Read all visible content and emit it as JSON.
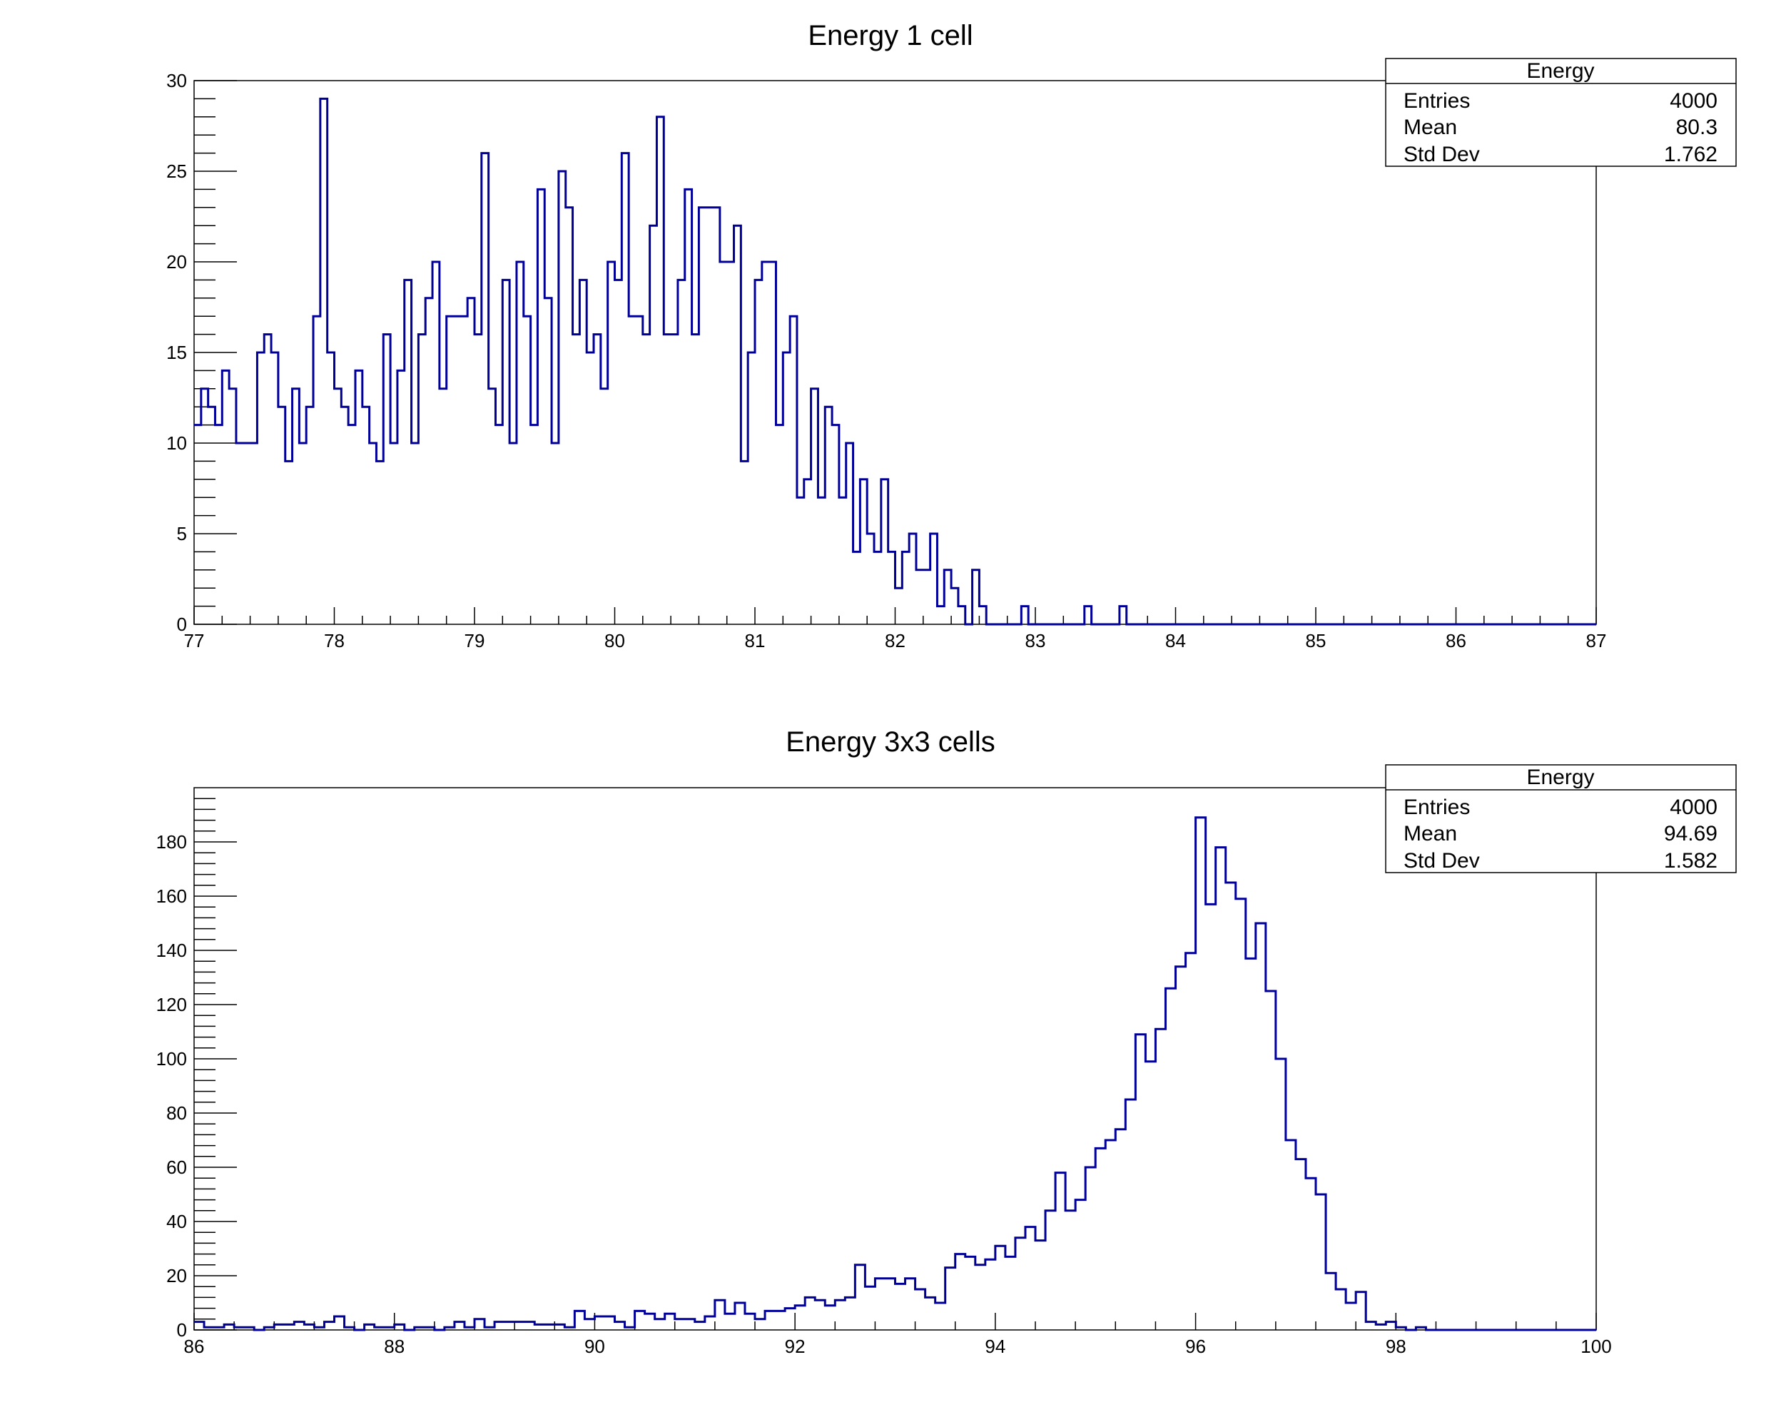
{
  "chart_data": [
    {
      "type": "histogram",
      "title": "Energy 1 cell",
      "xlabel": "",
      "ylabel": "",
      "xlim": [
        77,
        87
      ],
      "ylim": [
        0,
        30
      ],
      "x_ticks": [
        77,
        78,
        79,
        80,
        81,
        82,
        83,
        84,
        85,
        86,
        87
      ],
      "y_ticks": [
        0,
        5,
        10,
        15,
        20,
        25,
        30
      ],
      "bin_width": 0.05,
      "x_start": 77,
      "values": [
        11,
        13,
        12,
        11,
        14,
        13,
        10,
        10,
        10,
        15,
        16,
        15,
        12,
        9,
        13,
        10,
        12,
        17,
        29,
        15,
        13,
        12,
        11,
        14,
        12,
        10,
        9,
        16,
        10,
        14,
        19,
        10,
        16,
        18,
        20,
        13,
        17,
        17,
        17,
        18,
        16,
        26,
        13,
        11,
        19,
        10,
        20,
        17,
        11,
        24,
        18,
        10,
        25,
        23,
        16,
        19,
        15,
        16,
        13,
        20,
        19,
        26,
        17,
        17,
        16,
        22,
        28,
        16,
        16,
        19,
        24,
        16,
        23,
        23,
        23,
        20,
        20,
        22,
        9,
        15,
        19,
        20,
        20,
        11,
        15,
        17,
        7,
        8,
        13,
        7,
        12,
        11,
        7,
        10,
        4,
        8,
        5,
        4,
        8,
        4,
        2,
        4,
        5,
        3,
        3,
        5,
        1,
        3,
        2,
        1,
        0,
        3,
        1,
        0,
        0,
        0,
        0,
        0,
        1,
        0,
        0,
        0,
        0,
        0,
        0,
        0,
        0,
        1,
        0,
        0,
        0,
        0,
        1,
        0,
        0,
        0,
        0,
        0,
        0,
        0,
        0,
        0,
        0,
        0,
        0,
        0,
        0,
        0,
        0,
        0,
        0,
        0,
        0,
        0,
        0,
        0,
        0,
        0,
        0,
        0,
        0,
        0,
        0,
        0,
        0,
        0,
        0,
        0,
        0,
        0,
        0,
        0,
        0,
        0,
        0,
        0,
        0,
        0,
        0,
        0,
        0,
        0,
        0,
        0,
        0,
        0,
        0,
        0,
        0,
        0,
        0,
        0,
        0,
        0,
        0,
        0,
        0,
        0,
        0,
        0
      ],
      "stats": {
        "title": "Energy",
        "rows": [
          {
            "label": "Entries",
            "value": "4000"
          },
          {
            "label": "Mean",
            "value": "80.3"
          },
          {
            "label": "Std Dev",
            "value": "1.762"
          }
        ]
      },
      "color": "#000099",
      "grid": false
    },
    {
      "type": "histogram",
      "title": "Energy 3x3 cells",
      "xlabel": "",
      "ylabel": "",
      "xlim": [
        86,
        100
      ],
      "ylim": [
        0,
        200
      ],
      "x_ticks": [
        86,
        88,
        90,
        92,
        94,
        96,
        98,
        100
      ],
      "y_ticks": [
        0,
        20,
        40,
        60,
        80,
        100,
        120,
        140,
        160,
        180
      ],
      "bin_width": 0.1,
      "x_start": 86,
      "values": [
        3,
        1,
        1,
        2,
        1,
        1,
        0,
        1,
        2,
        2,
        3,
        2,
        1,
        3,
        5,
        1,
        0,
        2,
        1,
        1,
        2,
        0,
        1,
        1,
        0,
        1,
        3,
        1,
        4,
        1,
        3,
        3,
        3,
        3,
        2,
        2,
        2,
        1,
        7,
        4,
        5,
        5,
        3,
        1,
        7,
        6,
        4,
        6,
        4,
        4,
        3,
        5,
        11,
        6,
        10,
        6,
        4,
        7,
        7,
        8,
        9,
        12,
        11,
        9,
        11,
        12,
        24,
        16,
        19,
        19,
        17,
        19,
        15,
        12,
        10,
        23,
        28,
        27,
        24,
        26,
        31,
        27,
        34,
        38,
        33,
        44,
        58,
        44,
        48,
        60,
        67,
        70,
        74,
        85,
        109,
        99,
        111,
        126,
        134,
        139,
        189,
        157,
        178,
        165,
        159,
        137,
        150,
        125,
        100,
        70,
        63,
        56,
        50,
        21,
        15,
        10,
        14,
        3,
        2,
        3,
        1,
        0,
        1,
        0,
        0,
        0,
        0,
        0,
        0,
        0,
        0,
        0,
        0,
        0,
        0,
        0,
        0,
        0,
        0,
        0,
        0,
        0,
        0,
        0
      ],
      "stats": {
        "title": "Energy",
        "rows": [
          {
            "label": "Entries",
            "value": "4000"
          },
          {
            "label": "Mean",
            "value": "94.69"
          },
          {
            "label": "Std Dev",
            "value": "1.582"
          }
        ]
      },
      "color": "#000099",
      "grid": false
    }
  ]
}
